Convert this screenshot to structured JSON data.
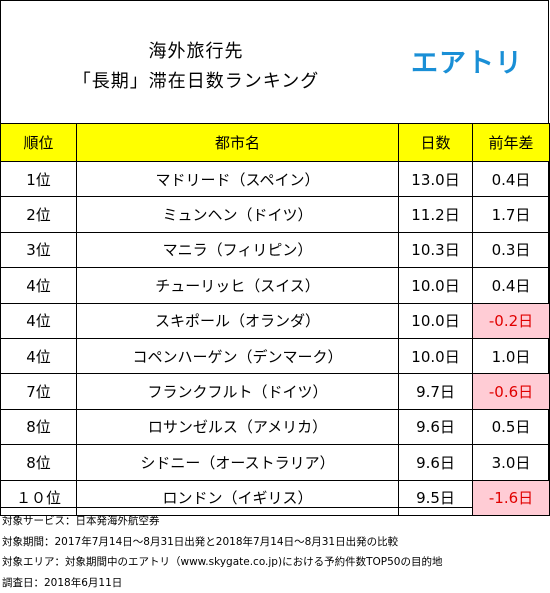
{
  "header": {
    "title_line1": "海外旅行先",
    "title_line2": "「長期」滞在日数ランキング",
    "logo_text": "エアトリ"
  },
  "table": {
    "columns": [
      "順位",
      "都市名",
      "日数",
      "前年差"
    ],
    "rows": [
      {
        "rank": "1位",
        "city": "マドリード（スペイン）",
        "days": "13.0日",
        "diff": "0.4日",
        "negative": false
      },
      {
        "rank": "2位",
        "city": "ミュンヘン（ドイツ）",
        "days": "11.2日",
        "diff": "1.7日",
        "negative": false
      },
      {
        "rank": "3位",
        "city": "マニラ（フィリピン）",
        "days": "10.3日",
        "diff": "0.3日",
        "negative": false
      },
      {
        "rank": "4位",
        "city": "チューリッヒ（スイス）",
        "days": "10.0日",
        "diff": "0.4日",
        "negative": false
      },
      {
        "rank": "4位",
        "city": "スキポール（オランダ）",
        "days": "10.0日",
        "diff": "-0.2日",
        "negative": true
      },
      {
        "rank": "4位",
        "city": "コペンハーゲン（デンマーク）",
        "days": "10.0日",
        "diff": "1.0日",
        "negative": false
      },
      {
        "rank": "7位",
        "city": "フランクフルト（ドイツ）",
        "days": "9.7日",
        "diff": "-0.6日",
        "negative": true
      },
      {
        "rank": "8位",
        "city": "ロサンゼルス（アメリカ）",
        "days": "9.6日",
        "diff": "0.5日",
        "negative": false
      },
      {
        "rank": "8位",
        "city": "シドニー（オーストラリア）",
        "days": "9.6日",
        "diff": "3.0日",
        "negative": false
      },
      {
        "rank": "１０位",
        "city": "ロンドン（イギリス）",
        "days": "9.5日",
        "diff": "-1.6日",
        "negative": true
      }
    ]
  },
  "notes": [
    "対象サービス：日本発海外航空券",
    "対象期間：2017年7月14日～8月31日出発と2018年7月14日～8月31日出発の比較",
    "対象エリア：対象期間中のエアトリ（www.skygate.co.jp)における予約件数TOP50の目的地",
    "調査日：2018年6月11日"
  ],
  "colors": {
    "header_row": "#ffff00",
    "negative_bg": "#ffccd5",
    "negative_text": "#e00000",
    "logo": "#1a8fd6"
  }
}
